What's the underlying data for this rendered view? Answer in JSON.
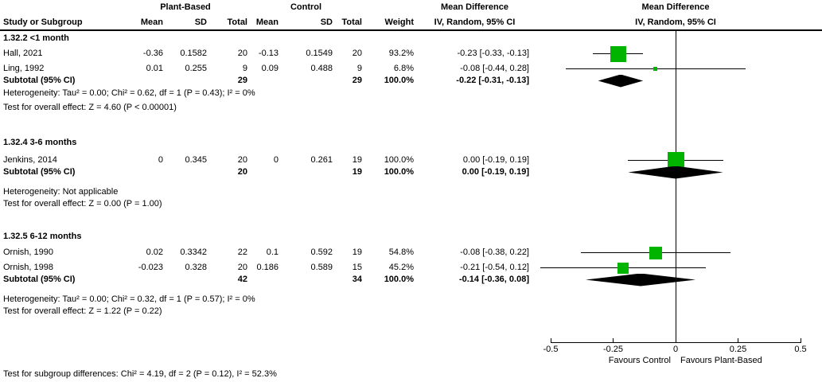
{
  "header": {
    "group1": "Plant-Based",
    "group2": "Control",
    "md_table_line1": "Mean Difference",
    "md_table_line2": "IV, Random, 95% CI",
    "md_plot_line1": "Mean Difference",
    "md_plot_line2": "IV, Random, 95% CI",
    "col_study": "Study or Subgroup",
    "col_mean": "Mean",
    "col_sd": "SD",
    "col_total": "Total",
    "col_weight": "Weight"
  },
  "groups": [
    {
      "label": "1.32.2 <1 month",
      "studies": [
        {
          "study": "Hall, 2021",
          "mean1": "-0.36",
          "sd1": "0.1582",
          "total1": "20",
          "mean2": "-0.13",
          "sd2": "0.1549",
          "total2": "20",
          "weight": "93.2%",
          "ci": "-0.23 [-0.33, -0.13]"
        },
        {
          "study": "Ling, 1992",
          "mean1": "0.01",
          "sd1": "0.255",
          "total1": "9",
          "mean2": "0.09",
          "sd2": "0.488",
          "total2": "9",
          "weight": "6.8%",
          "ci": "-0.08 [-0.44, 0.28]"
        }
      ],
      "subtotal": {
        "label": "Subtotal (95% CI)",
        "total1": "29",
        "total2": "29",
        "weight": "100.0%",
        "ci": "-0.22 [-0.31, -0.13]"
      },
      "heterogeneity": "Heterogeneity: Tau² = 0.00; Chi² = 0.62, df = 1 (P = 0.43); I² = 0%",
      "overall_effect": "Test for overall effect: Z = 4.60 (P < 0.00001)"
    },
    {
      "label": "1.32.4 3-6 months",
      "studies": [
        {
          "study": "Jenkins, 2014",
          "mean1": "0",
          "sd1": "0.345",
          "total1": "20",
          "mean2": "0",
          "sd2": "0.261",
          "total2": "19",
          "weight": "100.0%",
          "ci": "0.00 [-0.19, 0.19]"
        }
      ],
      "subtotal": {
        "label": "Subtotal (95% CI)",
        "total1": "20",
        "total2": "19",
        "weight": "100.0%",
        "ci": "0.00 [-0.19, 0.19]"
      },
      "heterogeneity": "Heterogeneity: Not applicable",
      "overall_effect": "Test for overall effect: Z = 0.00 (P = 1.00)"
    },
    {
      "label": "1.32.5 6-12 months",
      "studies": [
        {
          "study": "Ornish, 1990",
          "mean1": "0.02",
          "sd1": "0.3342",
          "total1": "22",
          "mean2": "0.1",
          "sd2": "0.592",
          "total2": "19",
          "weight": "54.8%",
          "ci": "-0.08 [-0.38, 0.22]"
        },
        {
          "study": "Ornish, 1998",
          "mean1": "-0.023",
          "sd1": "0.328",
          "total1": "20",
          "mean2": "0.186",
          "sd2": "0.589",
          "total2": "15",
          "weight": "45.2%",
          "ci": "-0.21 [-0.54, 0.12]"
        }
      ],
      "subtotal": {
        "label": "Subtotal (95% CI)",
        "total1": "42",
        "total2": "34",
        "weight": "100.0%",
        "ci": "-0.14 [-0.36, 0.08]"
      },
      "heterogeneity": "Heterogeneity: Tau² = 0.00; Chi² = 0.32, df = 1 (P = 0.57); I² = 0%",
      "overall_effect": "Test for overall effect: Z = 1.22 (P = 0.22)"
    }
  ],
  "footer": {
    "subgroup_diff": "Test for subgroup differences: Chi² = 4.19, df = 2 (P = 0.12), I² = 52.3%"
  },
  "axis": {
    "tick_labels": [
      "-0.5",
      "-0.25",
      "0",
      "0.25",
      "0.5"
    ],
    "favours_left": "Favours Control",
    "favours_right": "Favours Plant-Based"
  },
  "colors": {
    "square": "#00b400",
    "diamond": "#000000",
    "line": "#000000"
  },
  "chart_data": {
    "type": "forest",
    "title": "Mean Difference",
    "method": "IV, Random, 95% CI",
    "xlim": [
      -0.5,
      0.5
    ],
    "ticks": [
      -0.5,
      -0.25,
      0,
      0.25,
      0.5
    ],
    "xlabel_left": "Favours Control",
    "xlabel_right": "Favours Plant-Based",
    "groups": [
      {
        "label": "1.32.2 <1 month",
        "points": [
          {
            "study": "Hall, 2021",
            "md": -0.23,
            "lo": -0.33,
            "hi": -0.13,
            "weight": 93.2,
            "row": "row-hall"
          },
          {
            "study": "Ling, 1992",
            "md": -0.08,
            "lo": -0.44,
            "hi": 0.28,
            "weight": 6.8,
            "row": "row-ling"
          }
        ],
        "diamond": {
          "md": -0.22,
          "lo": -0.31,
          "hi": -0.13,
          "row": "row-sub1"
        }
      },
      {
        "label": "1.32.4 3-6 months",
        "points": [
          {
            "study": "Jenkins, 2014",
            "md": 0.0,
            "lo": -0.19,
            "hi": 0.19,
            "weight": 100.0,
            "row": "row-jenkins"
          }
        ],
        "diamond": {
          "md": 0.0,
          "lo": -0.19,
          "hi": 0.19,
          "row": "row-sub2"
        }
      },
      {
        "label": "1.32.5 6-12 months",
        "points": [
          {
            "study": "Ornish, 1990",
            "md": -0.08,
            "lo": -0.38,
            "hi": 0.22,
            "weight": 54.8,
            "row": "row-o90"
          },
          {
            "study": "Ornish, 1998",
            "md": -0.21,
            "lo": -0.54,
            "hi": 0.12,
            "weight": 45.2,
            "row": "row-o98"
          }
        ],
        "diamond": {
          "md": -0.14,
          "lo": -0.36,
          "hi": 0.08,
          "row": "row-sub3"
        }
      }
    ]
  }
}
